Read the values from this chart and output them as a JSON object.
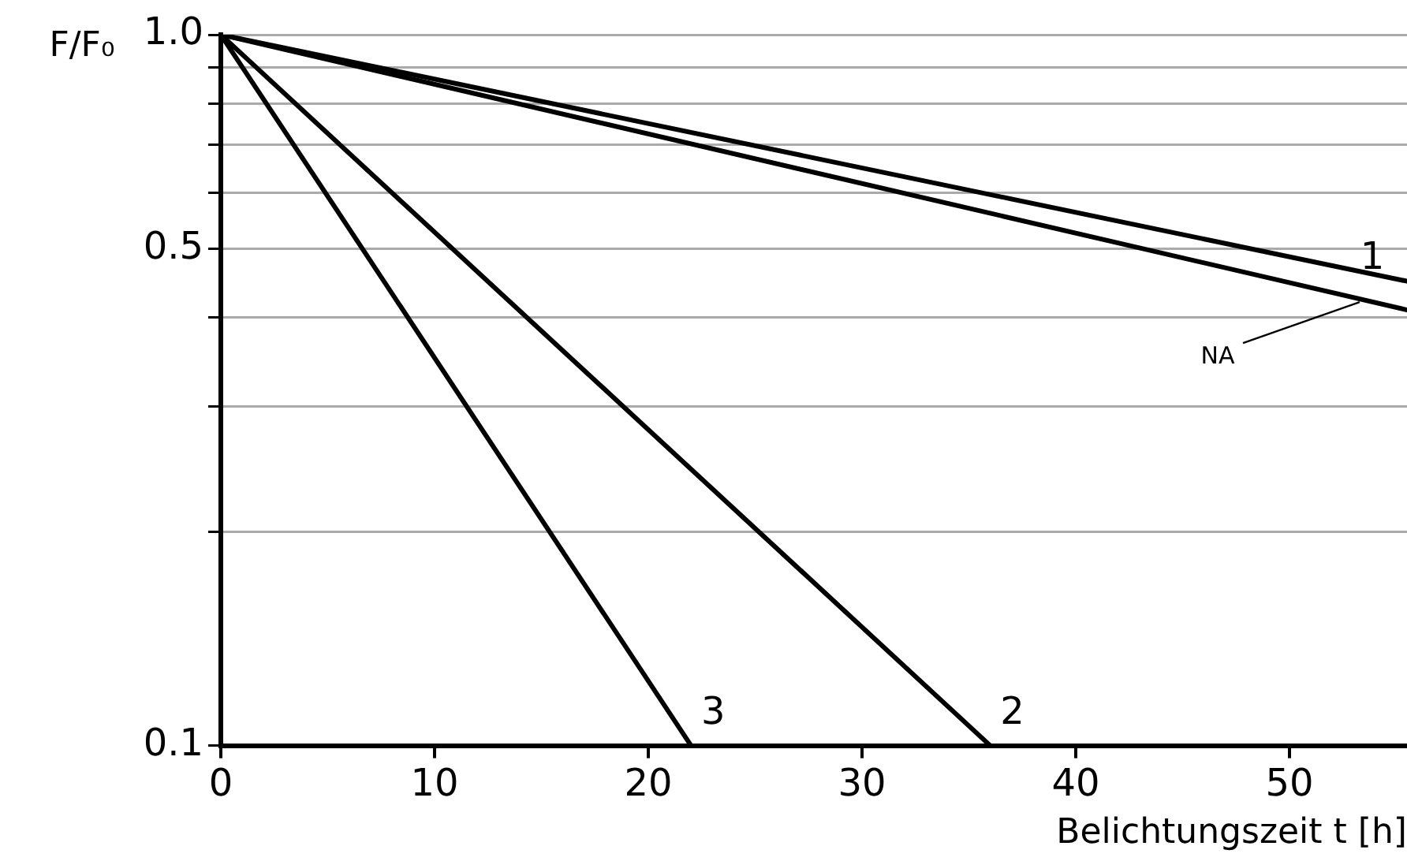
{
  "chart_data": {
    "type": "line",
    "xlabel": "Belichtungszeit t [h]",
    "ylabel": "F/F₀",
    "log": "y",
    "grid": "y",
    "legend": false,
    "marker": "none",
    "line_style": "solid",
    "xlim": [
      0,
      55.5
    ],
    "xticks": [
      0,
      10,
      20,
      30,
      40,
      50
    ],
    "ylim": [
      0.1,
      1.0
    ],
    "yticks": [
      {
        "value": 0.1,
        "label": "0.1"
      },
      {
        "value": 0.2,
        "label": null
      },
      {
        "value": 0.3,
        "label": null
      },
      {
        "value": 0.4,
        "label": null
      },
      {
        "value": 0.5,
        "label": "0.5"
      },
      {
        "value": 0.6,
        "label": null
      },
      {
        "value": 0.7,
        "label": null
      },
      {
        "value": 0.8,
        "label": null
      },
      {
        "value": 0.9,
        "label": null
      },
      {
        "value": 1.0,
        "label": "1.0"
      }
    ],
    "series": [
      {
        "name": "1",
        "color": "#000000",
        "x": [
          0,
          55.5
        ],
        "values": [
          1.0,
          0.45
        ]
      },
      {
        "name": "NA",
        "color": "#000000",
        "x": [
          0,
          55.5
        ],
        "values": [
          1.0,
          0.41
        ]
      },
      {
        "name": "2",
        "color": "#000000",
        "x": [
          0,
          36
        ],
        "values": [
          1.0,
          0.1
        ]
      },
      {
        "name": "3",
        "color": "#000000",
        "x": [
          0,
          22
        ],
        "values": [
          1.0,
          0.1
        ]
      }
    ]
  }
}
